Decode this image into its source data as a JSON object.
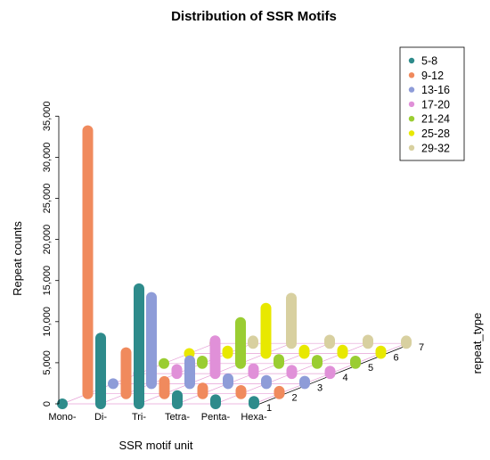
{
  "chart_data": {
    "type": "bar",
    "title": "Distribution of SSR Motifs",
    "xlabel": "SSR motif unit",
    "ylabel": "Repeat counts",
    "zlabel": "repeat_type",
    "categories": [
      "Mono-",
      "Di-",
      "Tri-",
      "Tetra-",
      "Penta-",
      "Hexa-"
    ],
    "depth_ticks": [
      "1",
      "2",
      "3",
      "4",
      "5",
      "6",
      "7"
    ],
    "y_ticks": [
      "0",
      "5,000",
      "10,000",
      "15,000",
      "20,000",
      "25,000",
      "30,000",
      "35,000"
    ],
    "ylim": [
      0,
      35000
    ],
    "legend_position": "top-right",
    "series": [
      {
        "name": "5-8",
        "color": "#2E8B8B",
        "values": [
          0,
          8000,
          14000,
          1000,
          500,
          300
        ]
      },
      {
        "name": "9-12",
        "color": "#F08A5D",
        "values": [
          32000,
          5000,
          1500,
          700,
          400,
          300
        ]
      },
      {
        "name": "13-16",
        "color": "#8E9CD8",
        "values": [
          0,
          10500,
          2800,
          600,
          400,
          300
        ]
      },
      {
        "name": "17-20",
        "color": "#E090D8",
        "values": [
          0,
          500,
          4000,
          600,
          400,
          300
        ]
      },
      {
        "name": "21-24",
        "color": "#9ACD32",
        "values": [
          0,
          300,
          5000,
          500,
          400,
          300
        ]
      },
      {
        "name": "25-28",
        "color": "#E8E800",
        "values": [
          0,
          300,
          5500,
          400,
          400,
          300
        ]
      },
      {
        "name": "29-32",
        "color": "#D8D0A0",
        "values": [
          0,
          300,
          5500,
          400,
          400,
          300
        ]
      }
    ]
  }
}
